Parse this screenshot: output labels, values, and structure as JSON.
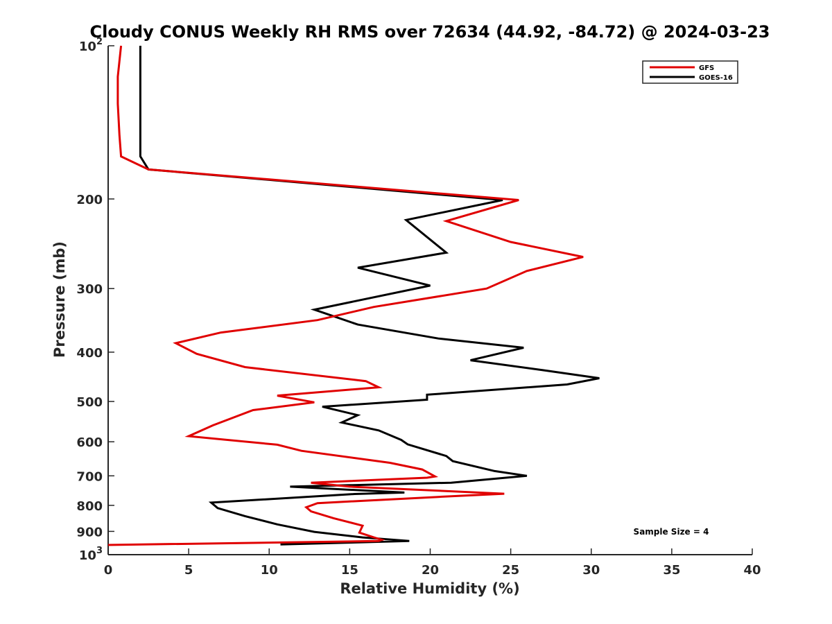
{
  "chart_data": {
    "type": "line",
    "title": "Cloudy CONUS Weekly RH RMS over 72634 (44.92, -84.72) @ 2024-03-23",
    "xlabel": "Relative Humidity (%)",
    "ylabel": "Pressure (mb)",
    "xlim": [
      0,
      40
    ],
    "ylim": [
      100,
      1000
    ],
    "y_scale": "log",
    "y_reversed": true,
    "x_ticks": [
      0,
      5,
      10,
      15,
      20,
      25,
      30,
      35,
      40
    ],
    "y_ticks": [
      {
        "value": 100,
        "label": "10",
        "sup": "2"
      },
      {
        "value": 200,
        "label": "200"
      },
      {
        "value": 300,
        "label": "300"
      },
      {
        "value": 400,
        "label": "400"
      },
      {
        "value": 500,
        "label": "500"
      },
      {
        "value": 600,
        "label": "600"
      },
      {
        "value": 700,
        "label": "700"
      },
      {
        "value": 800,
        "label": "800"
      },
      {
        "value": 900,
        "label": "900"
      },
      {
        "value": 1000,
        "label": "10",
        "sup": "3"
      }
    ],
    "grid": false,
    "legend_position": "top-right",
    "series": [
      {
        "name": "GFS",
        "color": "#e00000",
        "points": [
          [
            0.8,
            100
          ],
          [
            0.6,
            115
          ],
          [
            0.6,
            130
          ],
          [
            0.7,
            150
          ],
          [
            0.8,
            165
          ],
          [
            2.5,
            175
          ],
          [
            25.5,
            201
          ],
          [
            21,
            221
          ],
          [
            25,
            243
          ],
          [
            29.5,
            260
          ],
          [
            26,
            277
          ],
          [
            23.5,
            300
          ],
          [
            16.5,
            326
          ],
          [
            13,
            346
          ],
          [
            7,
            366
          ],
          [
            4.2,
            384
          ],
          [
            5.5,
            403
          ],
          [
            8.5,
            428
          ],
          [
            16,
            456
          ],
          [
            16.8,
            469
          ],
          [
            10.5,
            487
          ],
          [
            12.8,
            502
          ],
          [
            9,
            520
          ],
          [
            6.5,
            557
          ],
          [
            5,
            585
          ],
          [
            10.5,
            608
          ],
          [
            12,
            625
          ],
          [
            17.5,
            660
          ],
          [
            19.5,
            680
          ],
          [
            20.3,
            702
          ],
          [
            19.8,
            706
          ],
          [
            12.6,
            722
          ],
          [
            15,
            735
          ],
          [
            24.6,
            759
          ],
          [
            20.5,
            770
          ],
          [
            13,
            792
          ],
          [
            12.3,
            807
          ],
          [
            12.6,
            822
          ],
          [
            14,
            848
          ],
          [
            15.8,
            877
          ],
          [
            15.6,
            905
          ],
          [
            16.5,
            925
          ],
          [
            17,
            935
          ],
          [
            16.8,
            940
          ],
          [
            0,
            957
          ]
        ]
      },
      {
        "name": "GOES-16",
        "color": "#000000",
        "points": [
          [
            2.0,
            100
          ],
          [
            2.0,
            115
          ],
          [
            2.0,
            130
          ],
          [
            2.0,
            150
          ],
          [
            2.0,
            165
          ],
          [
            2.5,
            175
          ],
          [
            24.5,
            201
          ],
          [
            18.5,
            220
          ],
          [
            21,
            255
          ],
          [
            15.5,
            273
          ],
          [
            20,
            296
          ],
          [
            12.8,
            330
          ],
          [
            15.5,
            353
          ],
          [
            20.5,
            376
          ],
          [
            25.8,
            392
          ],
          [
            22.5,
            415
          ],
          [
            27,
            434
          ],
          [
            30.5,
            450
          ],
          [
            28.5,
            463
          ],
          [
            19.8,
            485
          ],
          [
            19.8,
            496
          ],
          [
            13.3,
            512
          ],
          [
            15.5,
            532
          ],
          [
            14.5,
            550
          ],
          [
            16.8,
            570
          ],
          [
            18.2,
            595
          ],
          [
            18.6,
            607
          ],
          [
            21,
            640
          ],
          [
            21.4,
            655
          ],
          [
            24,
            685
          ],
          [
            26,
            700
          ],
          [
            21.3,
            722
          ],
          [
            11.3,
            735
          ],
          [
            18.4,
            755
          ],
          [
            15.3,
            760
          ],
          [
            6.4,
            790
          ],
          [
            6.8,
            810
          ],
          [
            8.5,
            840
          ],
          [
            10.5,
            872
          ],
          [
            12.8,
            902
          ],
          [
            15.8,
            925
          ],
          [
            18.7,
            940
          ],
          [
            10.7,
            955
          ]
        ]
      }
    ],
    "annotations": [
      {
        "text": "Sample Size = 4",
        "position": "bottom-right"
      }
    ]
  }
}
